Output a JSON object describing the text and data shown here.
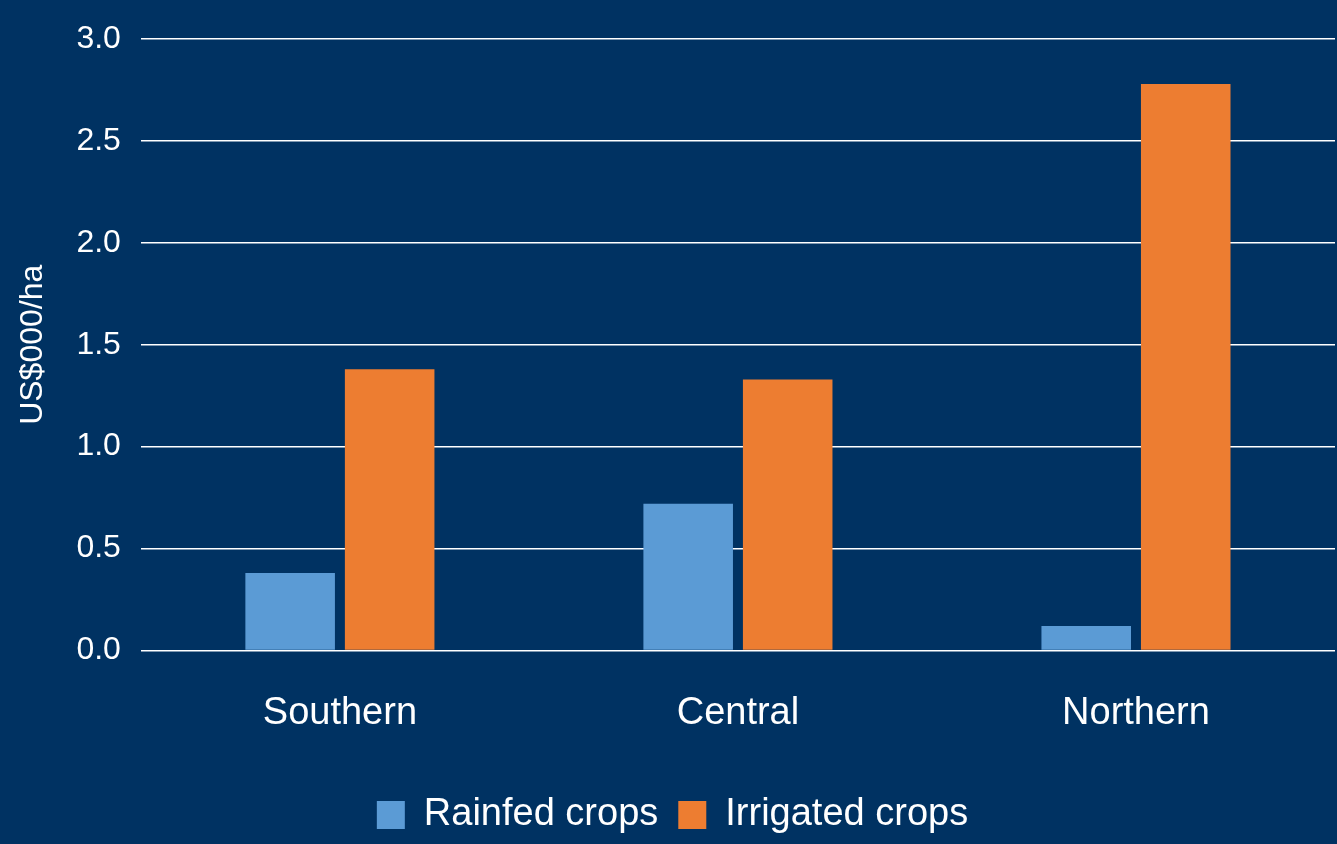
{
  "chart_data": {
    "type": "bar",
    "ylabel": "US$000/ha",
    "categories": [
      "Southern",
      "Central",
      "Northern"
    ],
    "series": [
      {
        "name": "Rainfed crops",
        "color": "#5b9bd5",
        "values": [
          0.38,
          0.72,
          0.12
        ]
      },
      {
        "name": "Irrigated crops",
        "color": "#ed7d31",
        "values": [
          1.38,
          1.33,
          2.78
        ]
      }
    ],
    "ylim": [
      0,
      3
    ],
    "yticks": [
      {
        "value": 0,
        "label": "0.0"
      },
      {
        "value": 0.5,
        "label": "0.5"
      },
      {
        "value": 1,
        "label": "1.0"
      },
      {
        "value": 1.5,
        "label": "1.5"
      },
      {
        "value": 2,
        "label": "2.0"
      },
      {
        "value": 2.5,
        "label": "2.5"
      },
      {
        "value": 3,
        "label": "3.0"
      }
    ],
    "grid": "y",
    "legend": "bottom"
  }
}
